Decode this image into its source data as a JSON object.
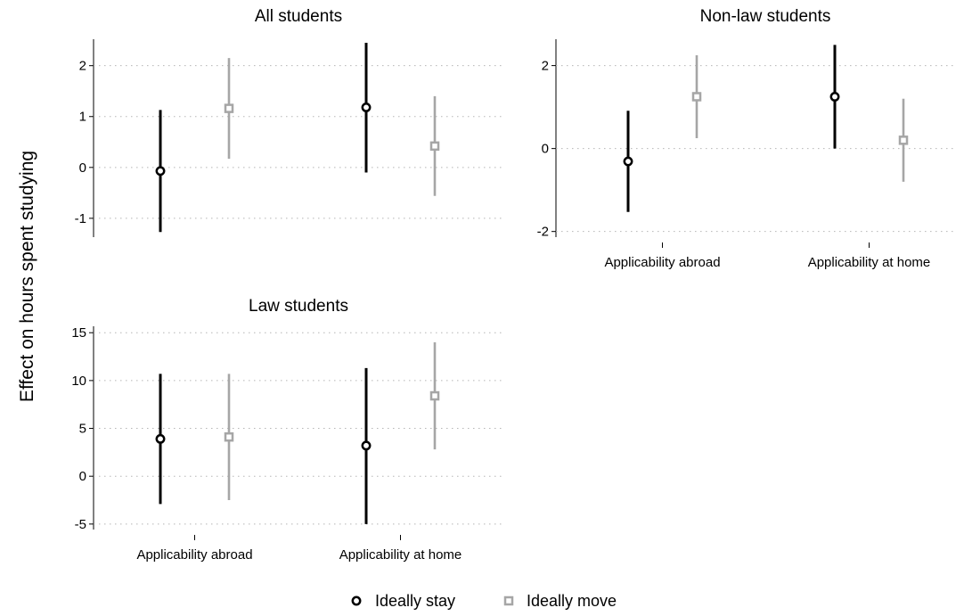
{
  "y_axis_label": "Effect on hours spent studying",
  "legend": {
    "items": [
      {
        "label": "Ideally stay",
        "color": "#000000",
        "marker": "circle"
      },
      {
        "label": "Ideally move",
        "color": "#a6a6a6",
        "marker": "square"
      }
    ]
  },
  "chart_data": [
    {
      "type": "scatter",
      "subtype": "coefficient plot with confidence intervals",
      "title": "All students",
      "categories": [],
      "ylim": [
        -1.3,
        2.45
      ],
      "yticks": [
        -1,
        0,
        1,
        2
      ],
      "grid": true,
      "series": [
        {
          "name": "Ideally stay",
          "color": "#000000",
          "points": [
            {
              "category": "Applicability abroad",
              "est": -0.07,
              "lo": -1.27,
              "hi": 1.13
            },
            {
              "category": "Applicability at home",
              "est": 1.18,
              "lo": -0.1,
              "hi": 2.45
            }
          ]
        },
        {
          "name": "Ideally move",
          "color": "#a6a6a6",
          "points": [
            {
              "category": "Applicability abroad",
              "est": 1.16,
              "lo": 0.17,
              "hi": 2.15
            },
            {
              "category": "Applicability at home",
              "est": 0.42,
              "lo": -0.56,
              "hi": 1.4
            }
          ]
        }
      ]
    },
    {
      "type": "scatter",
      "subtype": "coefficient plot with confidence intervals",
      "title": "Non-law students",
      "categories": [
        "Applicability abroad",
        "Applicability at home"
      ],
      "ylim": [
        -2.05,
        2.55
      ],
      "yticks": [
        -2,
        0,
        2
      ],
      "grid": true,
      "series": [
        {
          "name": "Ideally stay",
          "color": "#000000",
          "points": [
            {
              "category": "Applicability abroad",
              "est": -0.31,
              "lo": -1.53,
              "hi": 0.91
            },
            {
              "category": "Applicability at home",
              "est": 1.25,
              "lo": 0.0,
              "hi": 2.5
            }
          ]
        },
        {
          "name": "Ideally move",
          "color": "#a6a6a6",
          "points": [
            {
              "category": "Applicability abroad",
              "est": 1.25,
              "lo": 0.25,
              "hi": 2.25
            },
            {
              "category": "Applicability at home",
              "est": 0.2,
              "lo": -0.8,
              "hi": 1.2
            }
          ]
        }
      ]
    },
    {
      "type": "scatter",
      "subtype": "coefficient plot with confidence intervals",
      "title": "Law students",
      "categories": [
        "Applicability abroad",
        "Applicability at home"
      ],
      "ylim": [
        -5.2,
        15.3
      ],
      "yticks": [
        -5,
        0,
        5,
        10,
        15
      ],
      "grid": true,
      "series": [
        {
          "name": "Ideally stay",
          "color": "#000000",
          "points": [
            {
              "category": "Applicability abroad",
              "est": 3.9,
              "lo": -2.9,
              "hi": 10.7
            },
            {
              "category": "Applicability at home",
              "est": 3.2,
              "lo": -5.0,
              "hi": 11.3
            }
          ]
        },
        {
          "name": "Ideally move",
          "color": "#a6a6a6",
          "points": [
            {
              "category": "Applicability abroad",
              "est": 4.1,
              "lo": -2.5,
              "hi": 10.7
            },
            {
              "category": "Applicability at home",
              "est": 8.4,
              "lo": 2.8,
              "hi": 14.0
            }
          ]
        }
      ]
    }
  ]
}
